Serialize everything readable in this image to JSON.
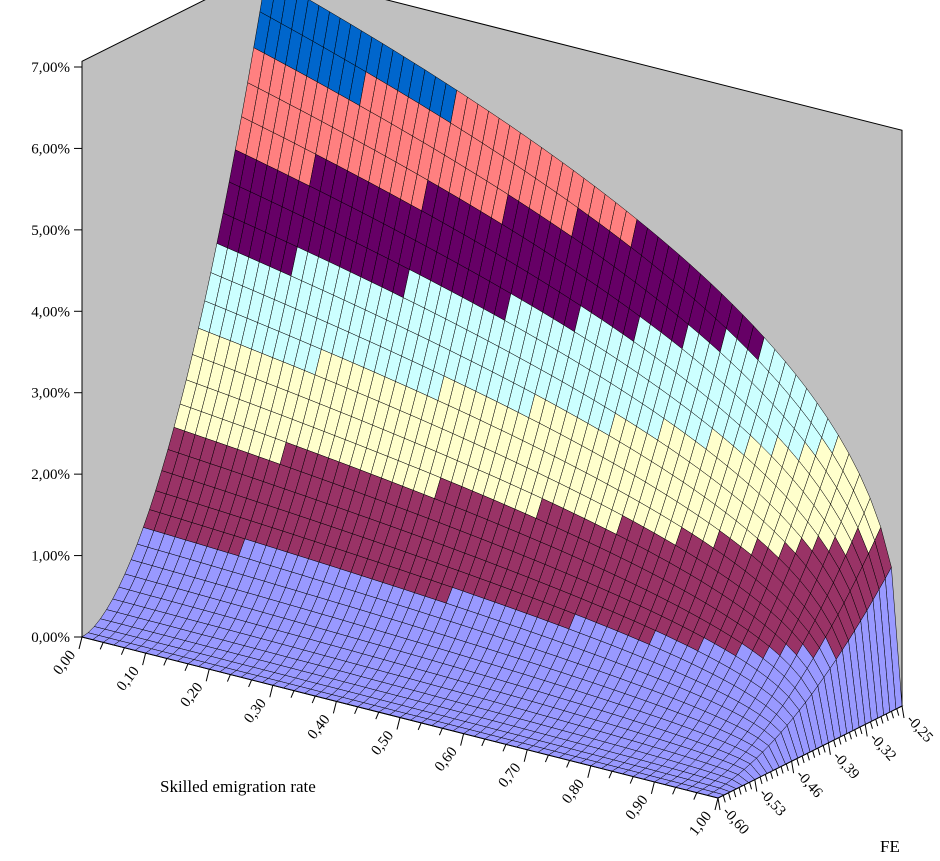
{
  "chart_data": {
    "type": "surface",
    "title": "",
    "x_axis": {
      "label": "Skilled emigration rate",
      "ticks": [
        "0,00",
        "0,10",
        "0,20",
        "0,30",
        "0,40",
        "0,50",
        "0,60",
        "0,70",
        "0,80",
        "0,90",
        "1,00"
      ],
      "range": [
        0,
        1
      ]
    },
    "fe_axis": {
      "label": "FE",
      "ticks": [
        "-0,60",
        "-0,53",
        "-0,46",
        "-0,39",
        "-0,32",
        "-0,25"
      ],
      "range": [
        -0.6,
        -0.25
      ]
    },
    "z_axis": {
      "ticks": [
        "0,00%",
        "1,00%",
        "2,00%",
        "3,00%",
        "4,00%",
        "5,00%",
        "6,00%",
        "7,00%"
      ],
      "range": [
        0,
        0.07
      ]
    },
    "color_bands": [
      {
        "range": "0,00%-1,00%",
        "color": "#9999ff"
      },
      {
        "range": "1,00%-2,00%",
        "color": "#993366"
      },
      {
        "range": "2,00%-3,00%",
        "color": "#ffffcc"
      },
      {
        "range": "3,00%-4,00%",
        "color": "#ccffff"
      },
      {
        "range": "4,00%-5,00%",
        "color": "#660066"
      },
      {
        "range": "5,00%-6,00%",
        "color": "#ff8080"
      },
      {
        "range": "6,00%-7,00%",
        "color": "#0066cc"
      }
    ],
    "surface_samples": [
      {
        "x": 0.0,
        "fe": -0.6,
        "z": 0.003
      },
      {
        "x": 0.0,
        "fe": -0.25,
        "z": 0.069
      },
      {
        "x": 1.0,
        "fe": -0.6,
        "z": 0.0
      },
      {
        "x": 1.0,
        "fe": -0.25,
        "z": 0.0
      }
    ],
    "wall_color": "#c0c0c0",
    "grid": false,
    "legend": "none"
  }
}
